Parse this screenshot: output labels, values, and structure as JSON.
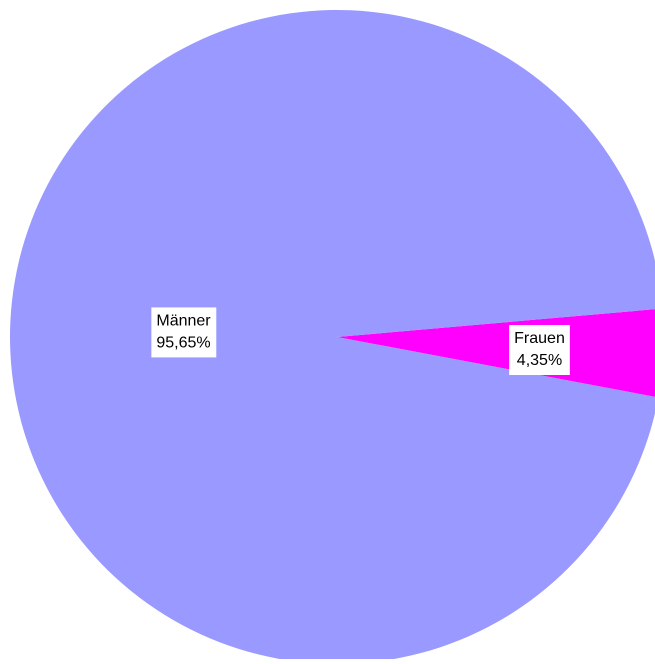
{
  "chart_data": {
    "type": "pie",
    "title": "",
    "slices": [
      {
        "label": "Frauen",
        "value": 4.35,
        "value_label": "4,35%",
        "color": "#FF00FF"
      },
      {
        "label": "Männer",
        "value": 95.65,
        "value_label": "95,65%",
        "color": "#9999FF"
      }
    ],
    "legend": "none",
    "start_angle_deg": -5
  }
}
